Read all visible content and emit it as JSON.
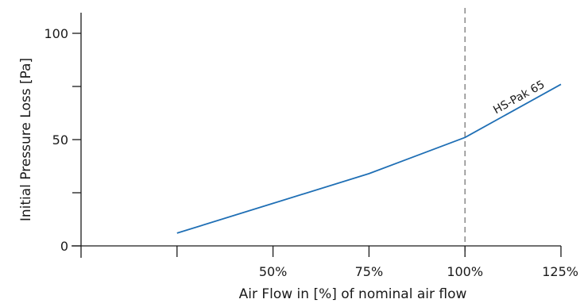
{
  "chart_data": {
    "type": "line",
    "title": "",
    "xlabel": "Air Flow in [%] of nominal air flow",
    "ylabel": "Initial Pressure Loss [Pa]",
    "xlim": [
      0,
      125
    ],
    "ylim": [
      0,
      110
    ],
    "x_ticks": [
      {
        "value": 50,
        "label": "50%"
      },
      {
        "value": 75,
        "label": "75%"
      },
      {
        "value": 100,
        "label": "100%"
      },
      {
        "value": 125,
        "label": "125%"
      }
    ],
    "x_minor_ticks": [
      25
    ],
    "y_ticks": [
      {
        "value": 0,
        "label": "0"
      },
      {
        "value": 50,
        "label": "50"
      },
      {
        "value": 100,
        "label": "100"
      }
    ],
    "y_minor_ticks": [
      25,
      75
    ],
    "reference_line": {
      "x": 100,
      "style": "dashed",
      "color": "#777777"
    },
    "series": [
      {
        "name": "HS-Pak 65",
        "color": "#1f6fb5",
        "x": [
          25,
          50,
          75,
          100,
          125
        ],
        "y": [
          6,
          20,
          34,
          51,
          76
        ]
      }
    ],
    "grid": false,
    "legend": "none"
  }
}
